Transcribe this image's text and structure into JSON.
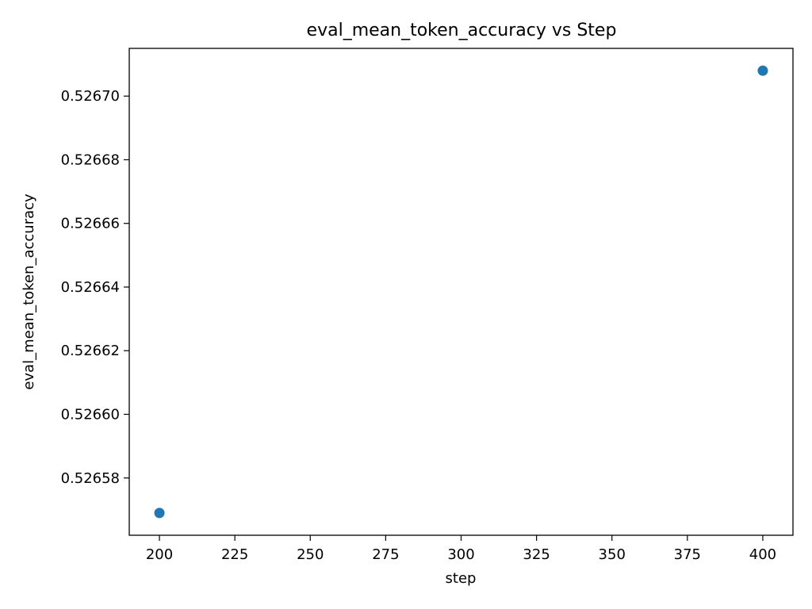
{
  "chart_data": {
    "type": "scatter",
    "title": "eval_mean_token_accuracy vs Step",
    "xlabel": "step",
    "ylabel": "eval_mean_token_accuracy",
    "xlim": [
      190,
      410
    ],
    "ylim": [
      0.526562,
      0.526715
    ],
    "x_ticks": [
      200,
      225,
      250,
      275,
      300,
      325,
      350,
      375,
      400
    ],
    "y_ticks": [
      0.52658,
      0.5266,
      0.52662,
      0.52664,
      0.52666,
      0.52668,
      0.5267
    ],
    "y_tick_labels": [
      "0.52658",
      "0.52660",
      "0.52662",
      "0.52664",
      "0.52666",
      "0.52668",
      "0.52670"
    ],
    "grid": false,
    "series": [
      {
        "x": [
          200,
          400
        ],
        "y": [
          0.526569,
          0.526708
        ],
        "color": "#1f77b4"
      }
    ]
  }
}
